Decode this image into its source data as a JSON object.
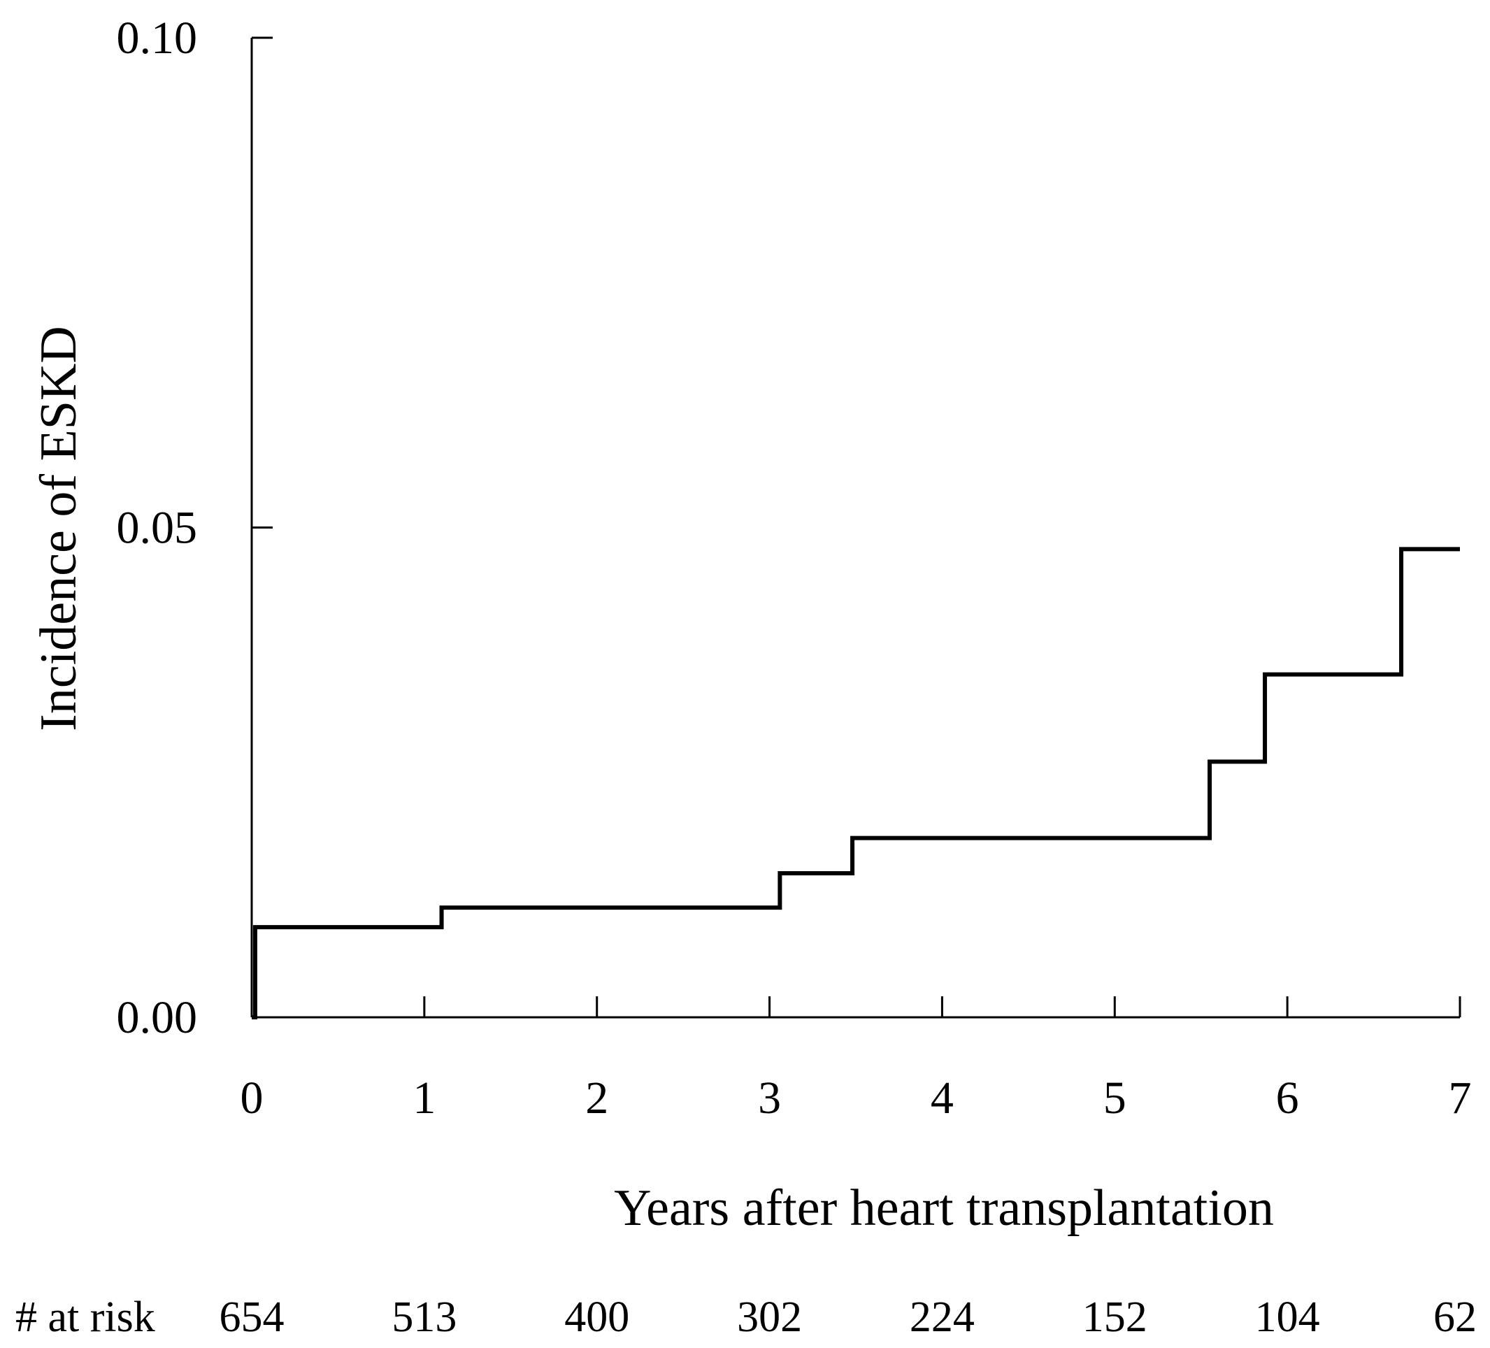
{
  "chart_data": {
    "type": "line",
    "step": true,
    "xlabel": "Years after heart transplantation",
    "ylabel": "Incidence of ESKD",
    "xlim": [
      0,
      7
    ],
    "ylim": [
      0,
      0.1
    ],
    "x_ticks": [
      "0",
      "1",
      "2",
      "3",
      "4",
      "5",
      "6",
      "7"
    ],
    "y_ticks": [
      "0.00",
      "0.05",
      "0.10"
    ],
    "grid": false,
    "legend": "none",
    "series": [
      {
        "x": [
          0.0,
          0.02,
          1.1,
          3.06,
          3.48,
          5.55,
          5.87,
          6.66,
          7.0
        ],
        "y": [
          0.0,
          0.0092,
          0.0112,
          0.0147,
          0.0183,
          0.0261,
          0.035,
          0.0478,
          0.0478
        ]
      }
    ],
    "risk_table": {
      "label": "# at risk",
      "values": [
        "654",
        "513",
        "400",
        "302",
        "224",
        "152",
        "104",
        "62"
      ]
    }
  }
}
